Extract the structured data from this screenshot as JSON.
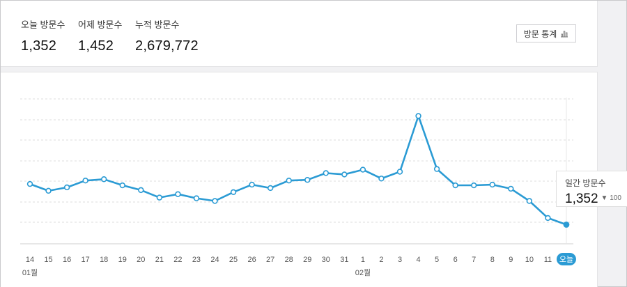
{
  "stats": [
    {
      "label": "오늘 방문수",
      "value": "1,352"
    },
    {
      "label": "어제 방문수",
      "value": "1,452"
    },
    {
      "label": "누적 방문수",
      "value": "2,679,772"
    }
  ],
  "stats_button_label": "방문 통계",
  "tooltip": {
    "label": "일간 방문수",
    "value": "1,352",
    "change": "▼ 100"
  },
  "month_labels": [
    "01월",
    "02월"
  ],
  "colors": {
    "line": "#2b9bd4",
    "grid": "#dcdcdc",
    "highlight": "#2b9bd4"
  },
  "chart_data": {
    "type": "line",
    "x": [
      "14",
      "15",
      "16",
      "17",
      "18",
      "19",
      "20",
      "21",
      "22",
      "23",
      "24",
      "25",
      "26",
      "27",
      "28",
      "29",
      "30",
      "31",
      "1",
      "2",
      "3",
      "4",
      "5",
      "6",
      "7",
      "8",
      "9",
      "10",
      "11",
      "오늘"
    ],
    "series": [
      {
        "values": [
          1950,
          1850,
          1900,
          2000,
          2020,
          1930,
          1860,
          1750,
          1800,
          1740,
          1700,
          1830,
          1940,
          1890,
          2000,
          2010,
          2110,
          2090,
          2160,
          2030,
          2130,
          2950,
          2170,
          1930,
          1930,
          1940,
          1880,
          1700,
          1450,
          1352
        ]
      }
    ],
    "highlight_index": 29,
    "grid": true
  }
}
